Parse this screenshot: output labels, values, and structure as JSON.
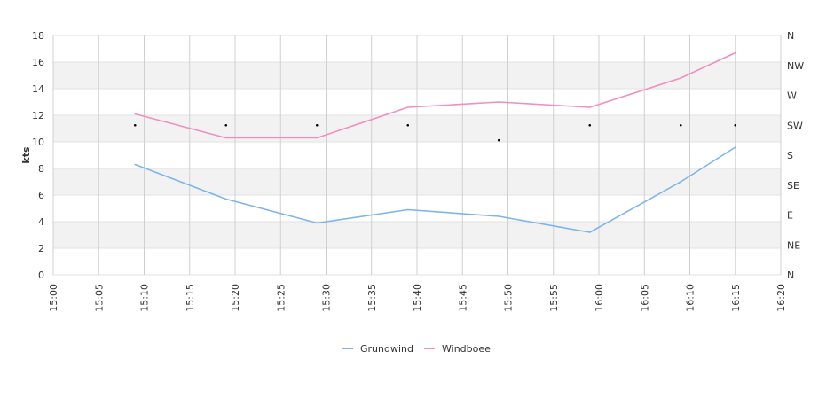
{
  "chart_data": {
    "type": "line",
    "ylabel": "kts",
    "ylim": [
      0,
      18
    ],
    "yticks": [
      0,
      2,
      4,
      6,
      8,
      10,
      12,
      14,
      16,
      18
    ],
    "xlim": [
      "15:00",
      "16:20"
    ],
    "xticks": [
      "15:00",
      "15:05",
      "15:10",
      "15:15",
      "15:20",
      "15:25",
      "15:30",
      "15:35",
      "15:40",
      "15:45",
      "15:50",
      "15:55",
      "16:00",
      "16:05",
      "16:10",
      "16:15",
      "16:20"
    ],
    "direction_axis": {
      "labels": [
        "N",
        "NE",
        "E",
        "SE",
        "S",
        "SW",
        "W",
        "NW",
        "N"
      ],
      "range": [
        0,
        360
      ]
    },
    "x": [
      "15:09",
      "15:19",
      "15:29",
      "15:39",
      "15:49",
      "15:59",
      "16:09",
      "16:15"
    ],
    "series": [
      {
        "name": "Grundwind",
        "color": "#7cb5ec",
        "values": [
          8.3,
          5.7,
          3.9,
          4.9,
          4.4,
          3.2,
          7.0,
          9.6
        ]
      },
      {
        "name": "Windboee",
        "color": "#f28fc0",
        "values": [
          12.1,
          10.3,
          10.3,
          12.6,
          13.0,
          12.6,
          14.8,
          16.7
        ]
      }
    ],
    "direction": {
      "x": [
        "15:09",
        "15:19",
        "15:29",
        "15:39",
        "15:49",
        "15:59",
        "16:09",
        "16:15"
      ],
      "values": [
        225,
        225,
        225,
        225,
        202.5,
        225,
        225,
        225
      ]
    },
    "grid": true,
    "legend": "bottom-center"
  }
}
